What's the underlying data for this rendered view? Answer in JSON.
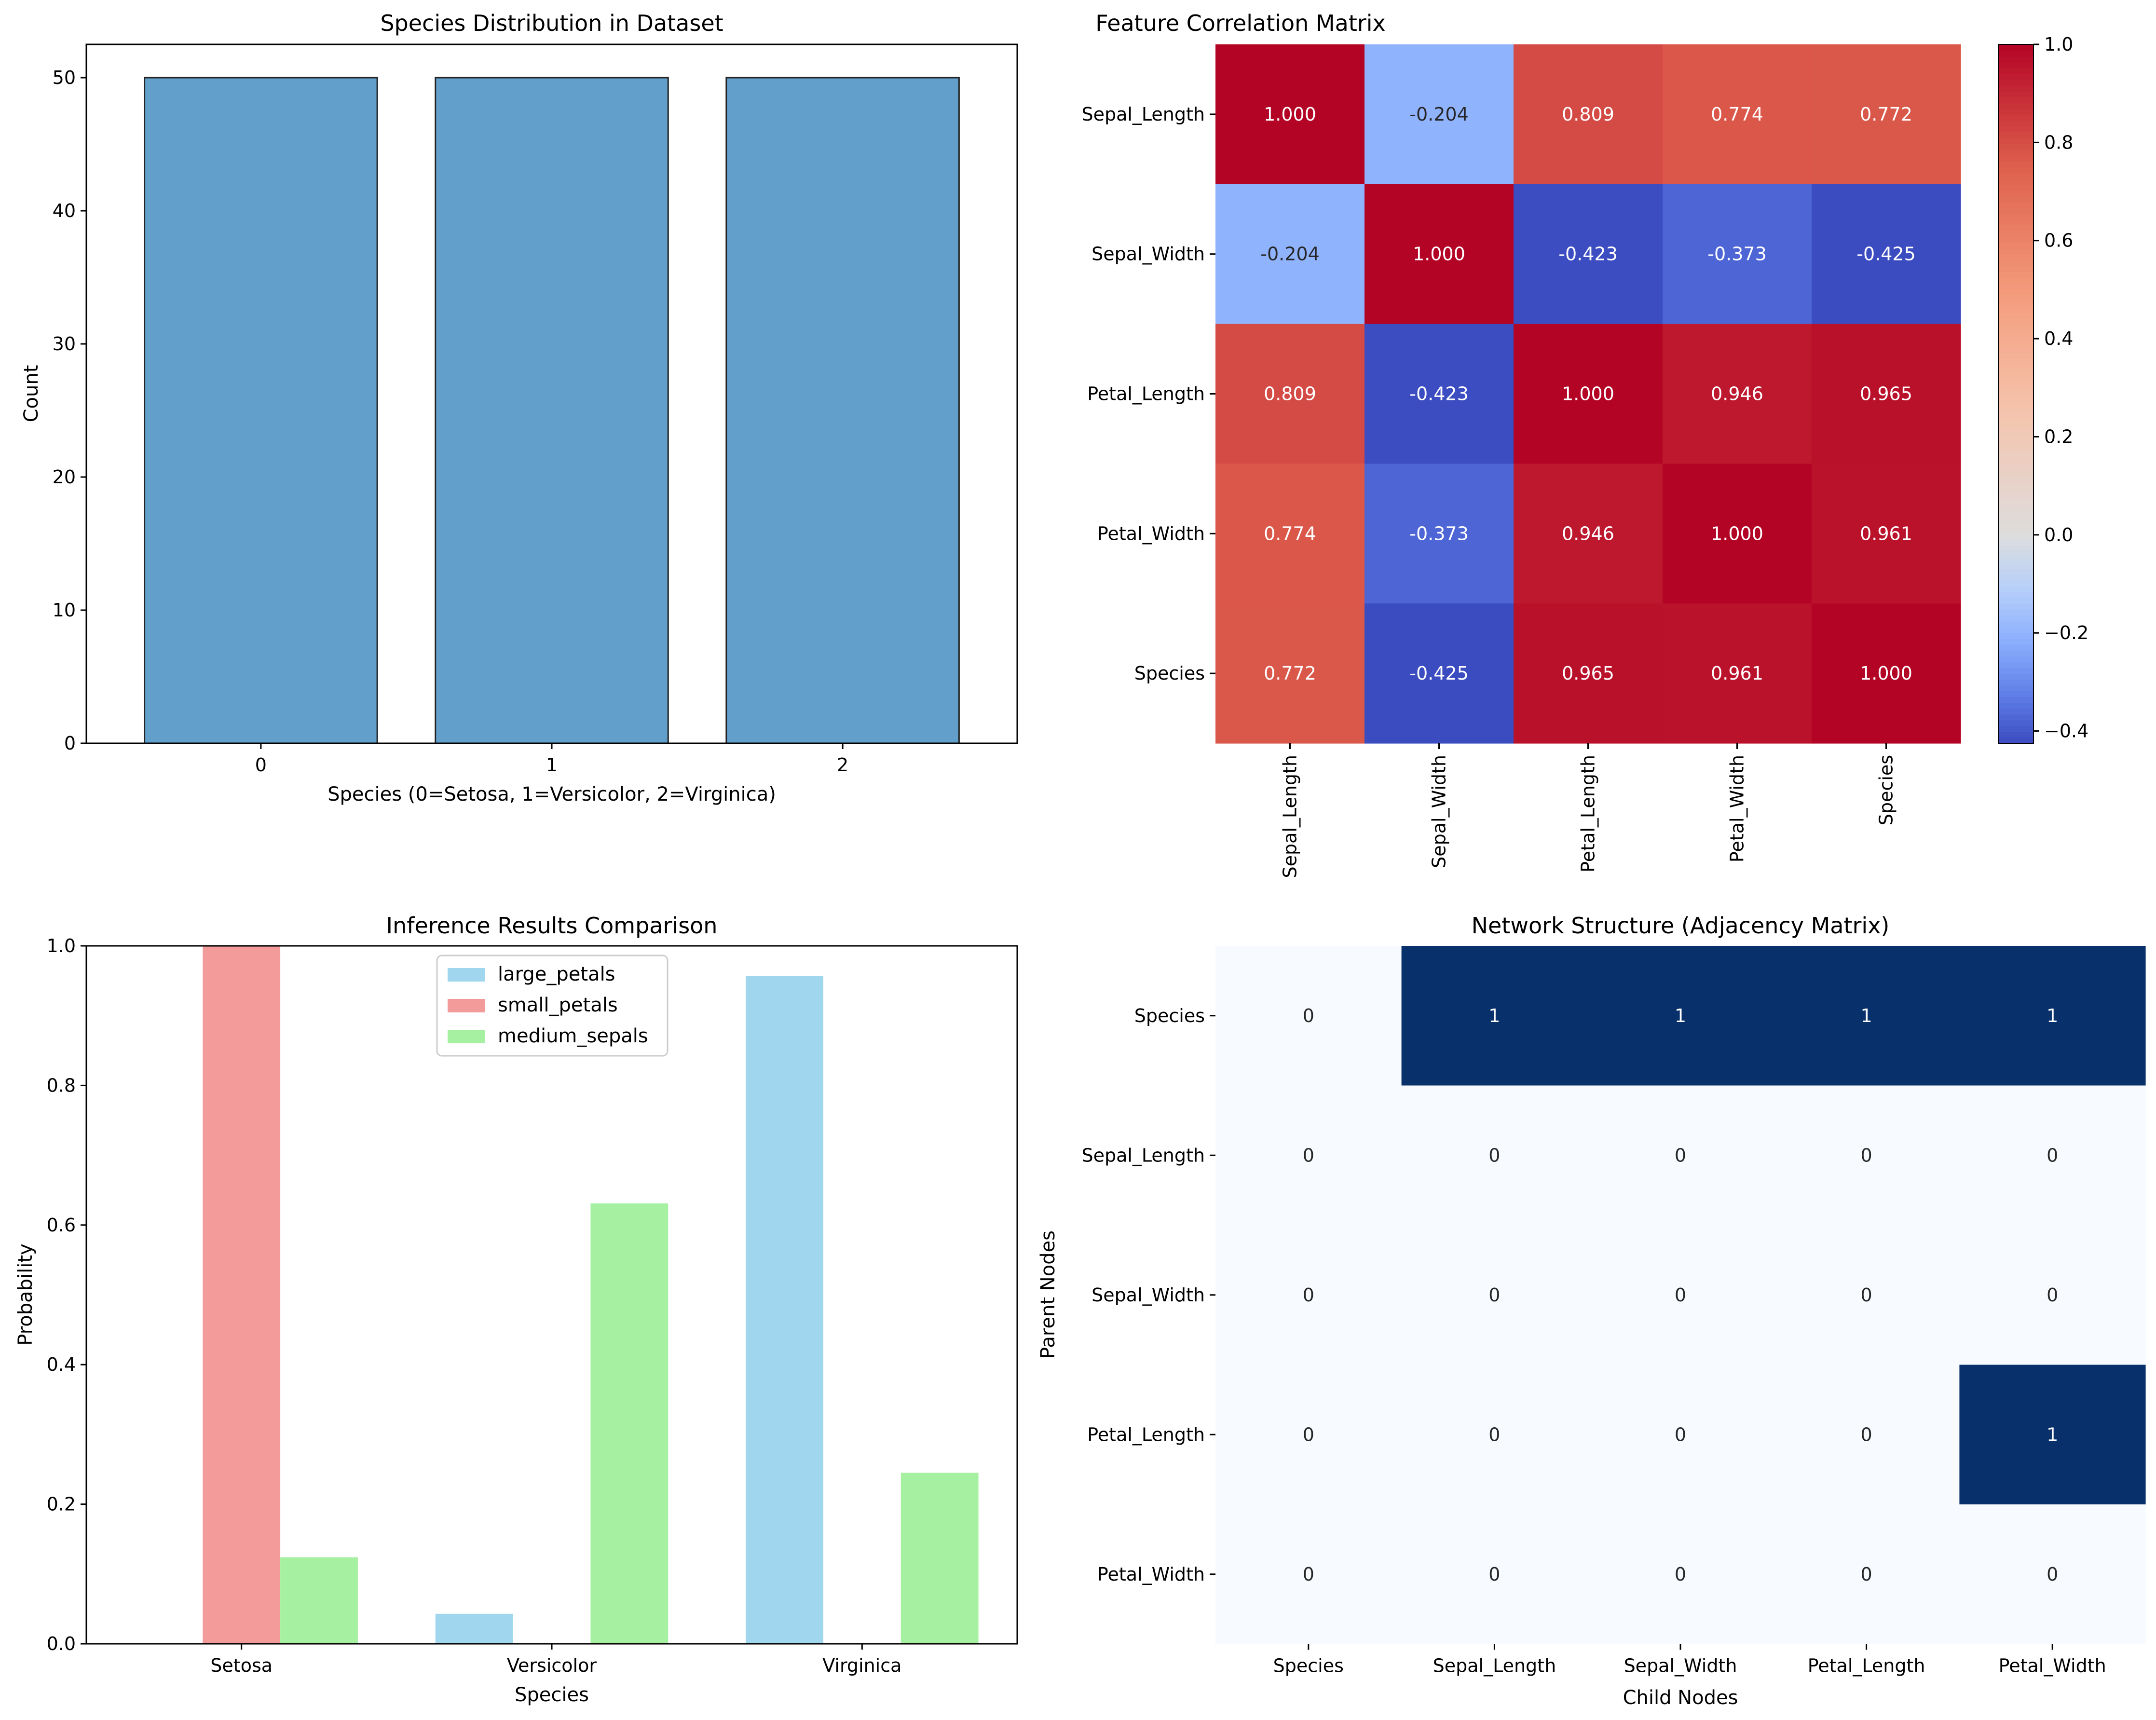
{
  "chart_data": [
    {
      "type": "bar",
      "title": "Species Distribution in Dataset",
      "xlabel": "Species (0=Setosa, 1=Versicolor, 2=Virginica)",
      "ylabel": "Count",
      "categories": [
        "0",
        "1",
        "2"
      ],
      "values": [
        50,
        50,
        50
      ],
      "ylim": [
        0,
        52.5
      ],
      "yticks": [
        0,
        10,
        20,
        30,
        40,
        50
      ],
      "bar_color": "#62a0cb",
      "edge_color": "#222222"
    },
    {
      "type": "heatmap",
      "title": "Feature Correlation Matrix",
      "rows": [
        "Sepal_Length",
        "Sepal_Width",
        "Petal_Length",
        "Petal_Width",
        "Species"
      ],
      "cols": [
        "Sepal_Length",
        "Sepal_Width",
        "Petal_Length",
        "Petal_Width",
        "Species"
      ],
      "values": [
        [
          1.0,
          -0.204,
          0.809,
          0.774,
          0.772
        ],
        [
          -0.204,
          1.0,
          -0.423,
          -0.373,
          -0.425
        ],
        [
          0.809,
          -0.423,
          1.0,
          0.946,
          0.965
        ],
        [
          0.774,
          -0.373,
          0.946,
          1.0,
          0.961
        ],
        [
          0.772,
          -0.425,
          0.965,
          0.961,
          1.0
        ]
      ],
      "labels": [
        [
          "1.000",
          "-0.204",
          "0.809",
          "0.774",
          "0.772"
        ],
        [
          "-0.204",
          "1.000",
          "-0.423",
          "-0.373",
          "-0.425"
        ],
        [
          "0.809",
          "-0.423",
          "1.000",
          "0.946",
          "0.965"
        ],
        [
          "0.774",
          "-0.373",
          "0.946",
          "1.000",
          "0.961"
        ],
        [
          "0.772",
          "-0.425",
          "0.965",
          "0.961",
          "1.000"
        ]
      ],
      "colormap": "coolwarm",
      "center": 0,
      "vmin": -0.425,
      "vmax": 1.0,
      "colorbar_ticks": [
        -0.4,
        -0.2,
        0.0,
        0.2,
        0.4,
        0.6,
        0.8,
        1.0
      ],
      "colorbar_tick_labels": [
        "−0.4",
        "−0.2",
        "0.0",
        "0.2",
        "0.4",
        "0.6",
        "0.8",
        "1.0"
      ]
    },
    {
      "type": "bar",
      "title": "Inference Results Comparison",
      "xlabel": "Species",
      "ylabel": "Probability",
      "categories": [
        "Setosa",
        "Versicolor",
        "Virginica"
      ],
      "series": [
        {
          "name": "large_petals",
          "values": [
            0.0,
            0.043,
            0.957
          ],
          "color": "#a0d6ee"
        },
        {
          "name": "small_petals",
          "values": [
            1.0,
            0.0,
            0.0
          ],
          "color": "#f39a9b"
        },
        {
          "name": "medium_sepals",
          "values": [
            0.124,
            0.631,
            0.245
          ],
          "color": "#a6f0a2"
        }
      ],
      "ylim": [
        0,
        1.0
      ],
      "yticks": [
        0.0,
        0.2,
        0.4,
        0.6,
        0.8,
        1.0
      ],
      "ytick_labels": [
        "0.0",
        "0.2",
        "0.4",
        "0.6",
        "0.8",
        "1.0"
      ],
      "legend": "top-center"
    },
    {
      "type": "heatmap",
      "title": "Network Structure (Adjacency Matrix)",
      "xlabel": "Child Nodes",
      "ylabel": "Parent Nodes",
      "rows": [
        "Species",
        "Sepal_Length",
        "Sepal_Width",
        "Petal_Length",
        "Petal_Width"
      ],
      "cols": [
        "Species",
        "Sepal_Length",
        "Sepal_Width",
        "Petal_Length",
        "Petal_Width"
      ],
      "values": [
        [
          0,
          1,
          1,
          1,
          1
        ],
        [
          0,
          0,
          0,
          0,
          0
        ],
        [
          0,
          0,
          0,
          0,
          0
        ],
        [
          0,
          0,
          0,
          0,
          1
        ],
        [
          0,
          0,
          0,
          0,
          0
        ]
      ],
      "labels": [
        [
          "0",
          "1",
          "1",
          "1",
          "1"
        ],
        [
          "0",
          "0",
          "0",
          "0",
          "0"
        ],
        [
          "0",
          "0",
          "0",
          "0",
          "0"
        ],
        [
          "0",
          "0",
          "0",
          "0",
          "1"
        ],
        [
          "0",
          "0",
          "0",
          "0",
          "0"
        ]
      ],
      "colormap": "Blues",
      "low_color": "#f7fbff",
      "high_color": "#08306b"
    }
  ]
}
